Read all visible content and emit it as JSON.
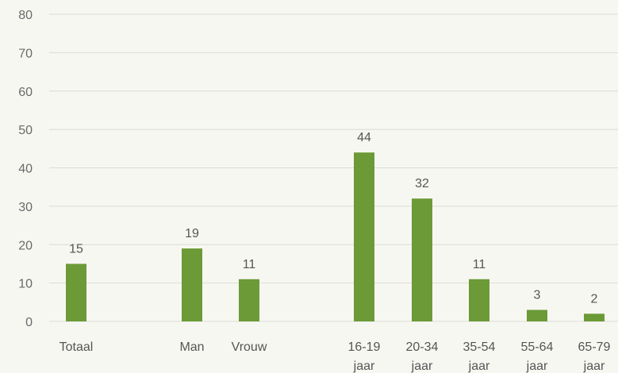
{
  "chart_data": {
    "type": "bar",
    "title": "",
    "xlabel": "",
    "ylabel": "",
    "ylim": [
      0,
      80
    ],
    "yticks": [
      0,
      10,
      20,
      30,
      40,
      50,
      60,
      70,
      80
    ],
    "grid": true,
    "legend": "none",
    "bar_color": "#6b9a37",
    "grid_color": "#dcdcd4",
    "categories": [
      [
        "Totaal"
      ],
      [
        "Man"
      ],
      [
        "Vrouw"
      ],
      [
        "16-19",
        "jaar"
      ],
      [
        "20-34",
        "jaar"
      ],
      [
        "35-54",
        "jaar"
      ],
      [
        "55-64",
        "jaar"
      ],
      [
        "65-79",
        "jaar"
      ]
    ],
    "values": [
      15,
      19,
      11,
      44,
      32,
      11,
      3,
      2
    ],
    "data_labels": [
      "15",
      "19",
      "11",
      "44",
      "32",
      "11",
      "3",
      "2"
    ]
  }
}
